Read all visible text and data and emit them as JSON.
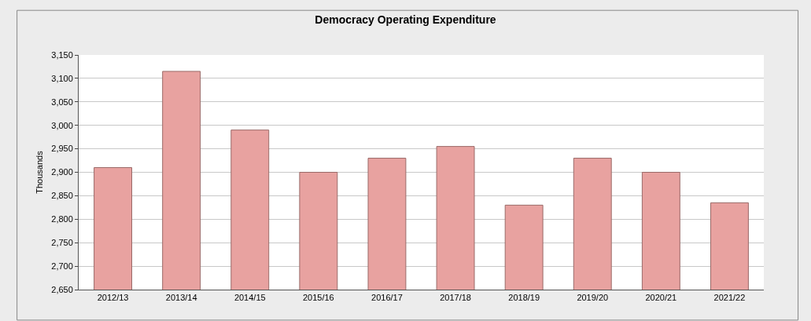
{
  "chart_data": {
    "type": "bar",
    "title": "Democracy Operating Expenditure",
    "ylabel": "Thousands",
    "categories": [
      "2012/13",
      "2013/14",
      "2014/15",
      "2015/16",
      "2016/17",
      "2017/18",
      "2018/19",
      "2019/20",
      "2020/21",
      "2021/22"
    ],
    "values": [
      2910,
      3115,
      2990,
      2900,
      2930,
      2955,
      2830,
      2930,
      2900,
      2835
    ],
    "color": "#e8a2a0",
    "ylim": [
      2650,
      3150
    ],
    "yticks": [
      {
        "value": 2650,
        "label": "2,650"
      },
      {
        "value": 2700,
        "label": "2,700"
      },
      {
        "value": 2750,
        "label": "2,750"
      },
      {
        "value": 2800,
        "label": "2,800"
      },
      {
        "value": 2850,
        "label": "2,850"
      },
      {
        "value": 2900,
        "label": "2,900"
      },
      {
        "value": 2950,
        "label": "2,950"
      },
      {
        "value": 3000,
        "label": "3,000"
      },
      {
        "value": 3050,
        "label": "3,050"
      },
      {
        "value": 3100,
        "label": "3,100"
      },
      {
        "value": 3150,
        "label": "3,150"
      }
    ],
    "grid": "y"
  }
}
